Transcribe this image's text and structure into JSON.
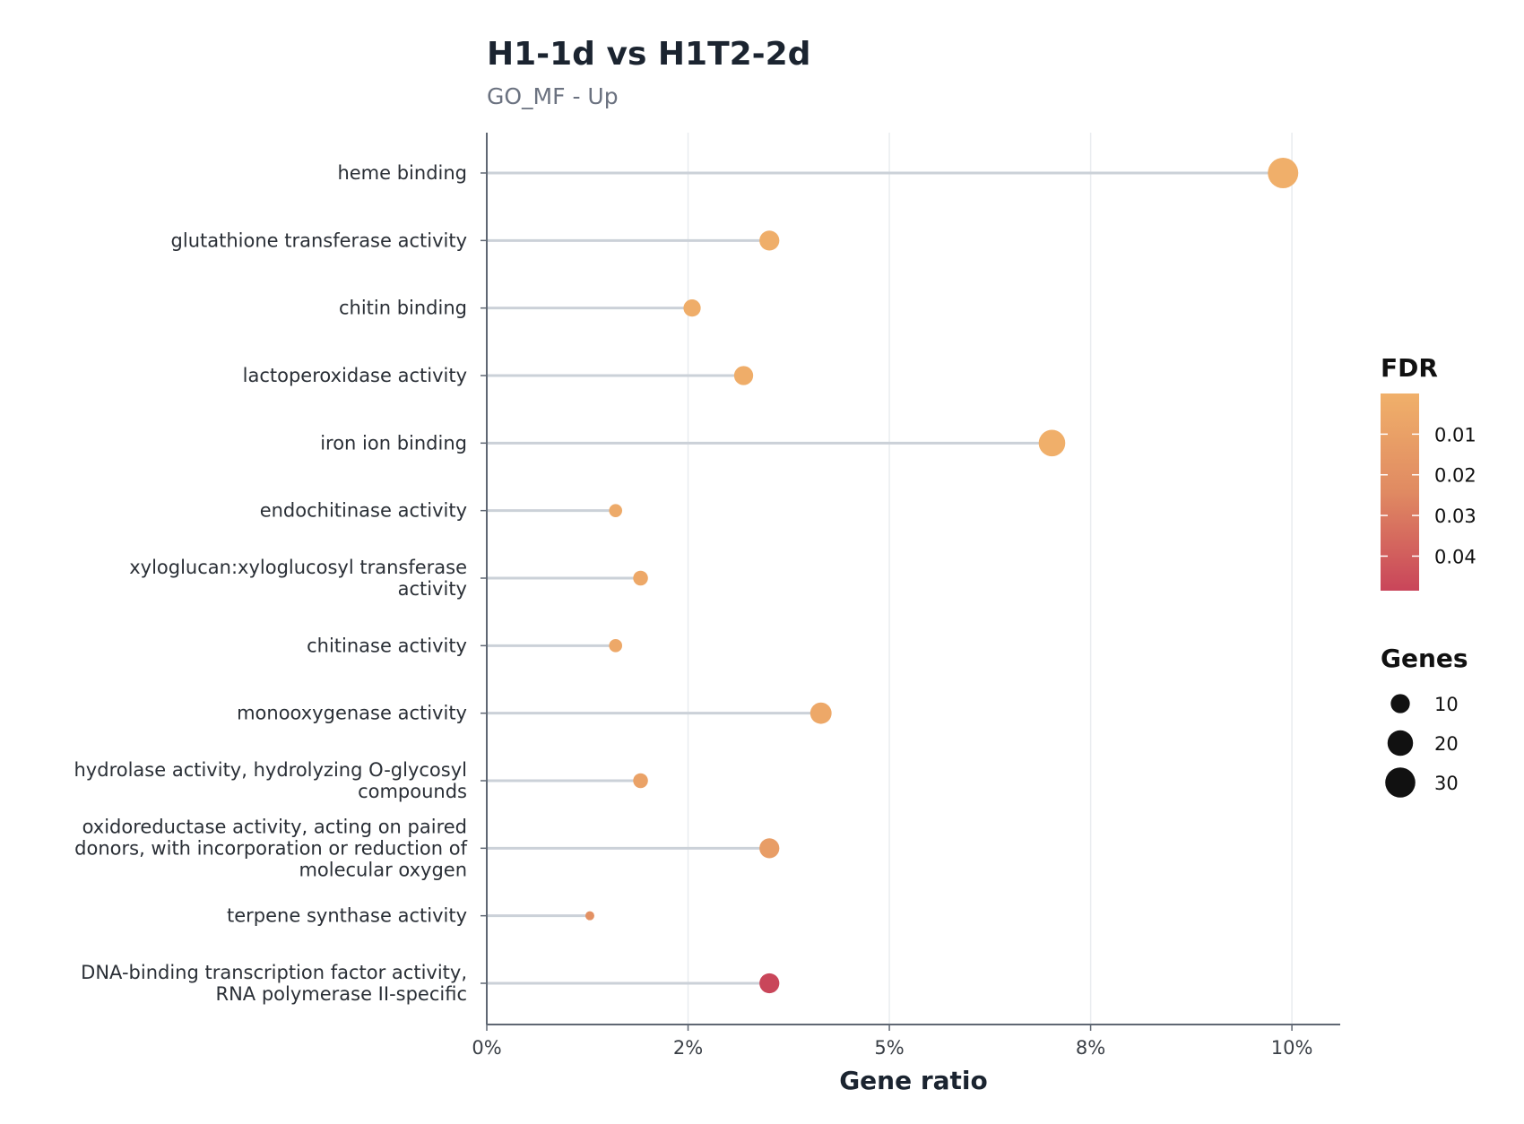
{
  "chart_data": {
    "type": "scatter",
    "variant": "lollipop",
    "title": "H1-1d vs H1T2-2d",
    "subtitle": "GO_MF - Up",
    "xlabel": "Gene ratio",
    "ylabel": "",
    "xlim": [
      0,
      0.106
    ],
    "x_ticks": [
      {
        "value": 0.0,
        "label": "0%"
      },
      {
        "value": 0.025,
        "label": "2%"
      },
      {
        "value": 0.05,
        "label": "5%"
      },
      {
        "value": 0.075,
        "label": "8%"
      },
      {
        "value": 0.1,
        "label": "10%"
      }
    ],
    "grid": "vertical major",
    "categories": [
      [
        "heme binding"
      ],
      [
        "glutathione transferase activity"
      ],
      [
        "chitin binding"
      ],
      [
        "lactoperoxidase activity"
      ],
      [
        "iron ion binding"
      ],
      [
        "endochitinase activity"
      ],
      [
        "xyloglucan:xyloglucosyl transferase",
        "activity"
      ],
      [
        "chitinase activity"
      ],
      [
        "monooxygenase activity"
      ],
      [
        "hydrolase activity, hydrolyzing O-glycosyl",
        "compounds"
      ],
      [
        "oxidoreductase activity, acting on paired",
        "donors, with incorporation or reduction of",
        "molecular oxygen"
      ],
      [
        "terpene synthase activity"
      ],
      [
        "DNA-binding transcription factor activity,",
        "RNA polymerase II-specific"
      ]
    ],
    "series": [
      {
        "gene_ratio": [
          0.0989,
          0.0351,
          0.0255,
          0.0319,
          0.0702,
          0.016,
          0.0191,
          0.016,
          0.0415,
          0.0191,
          0.0351,
          0.0128,
          0.0351
        ],
        "genes": [
          31,
          11,
          8,
          10,
          22,
          5,
          6,
          5,
          13,
          6,
          11,
          4,
          11
        ],
        "fdr": [
          0.0005,
          0.0015,
          0.002,
          0.002,
          0.0005,
          0.004,
          0.005,
          0.005,
          0.005,
          0.009,
          0.012,
          0.02,
          0.048
        ]
      }
    ],
    "color_legend": {
      "title": "FDR",
      "ticks": [
        "0.01",
        "0.02",
        "0.03",
        "0.04"
      ],
      "tick_values": [
        0.01,
        0.02,
        0.03,
        0.04
      ],
      "domain": [
        0.0,
        0.0485
      ],
      "color_low": "#f0b06a",
      "color_mid": "#e08a62",
      "color_high": "#c9455a"
    },
    "size_legend": {
      "title": "Genes",
      "items": [
        {
          "value": 10,
          "label": "10"
        },
        {
          "value": 20,
          "label": "20"
        },
        {
          "value": 30,
          "label": "30"
        }
      ]
    },
    "legend_position": "right",
    "colors": {
      "stem": "#cbd1d8",
      "axis": "#5f6773",
      "grid": "#e9ecef",
      "legend_dot": "#111111"
    }
  }
}
